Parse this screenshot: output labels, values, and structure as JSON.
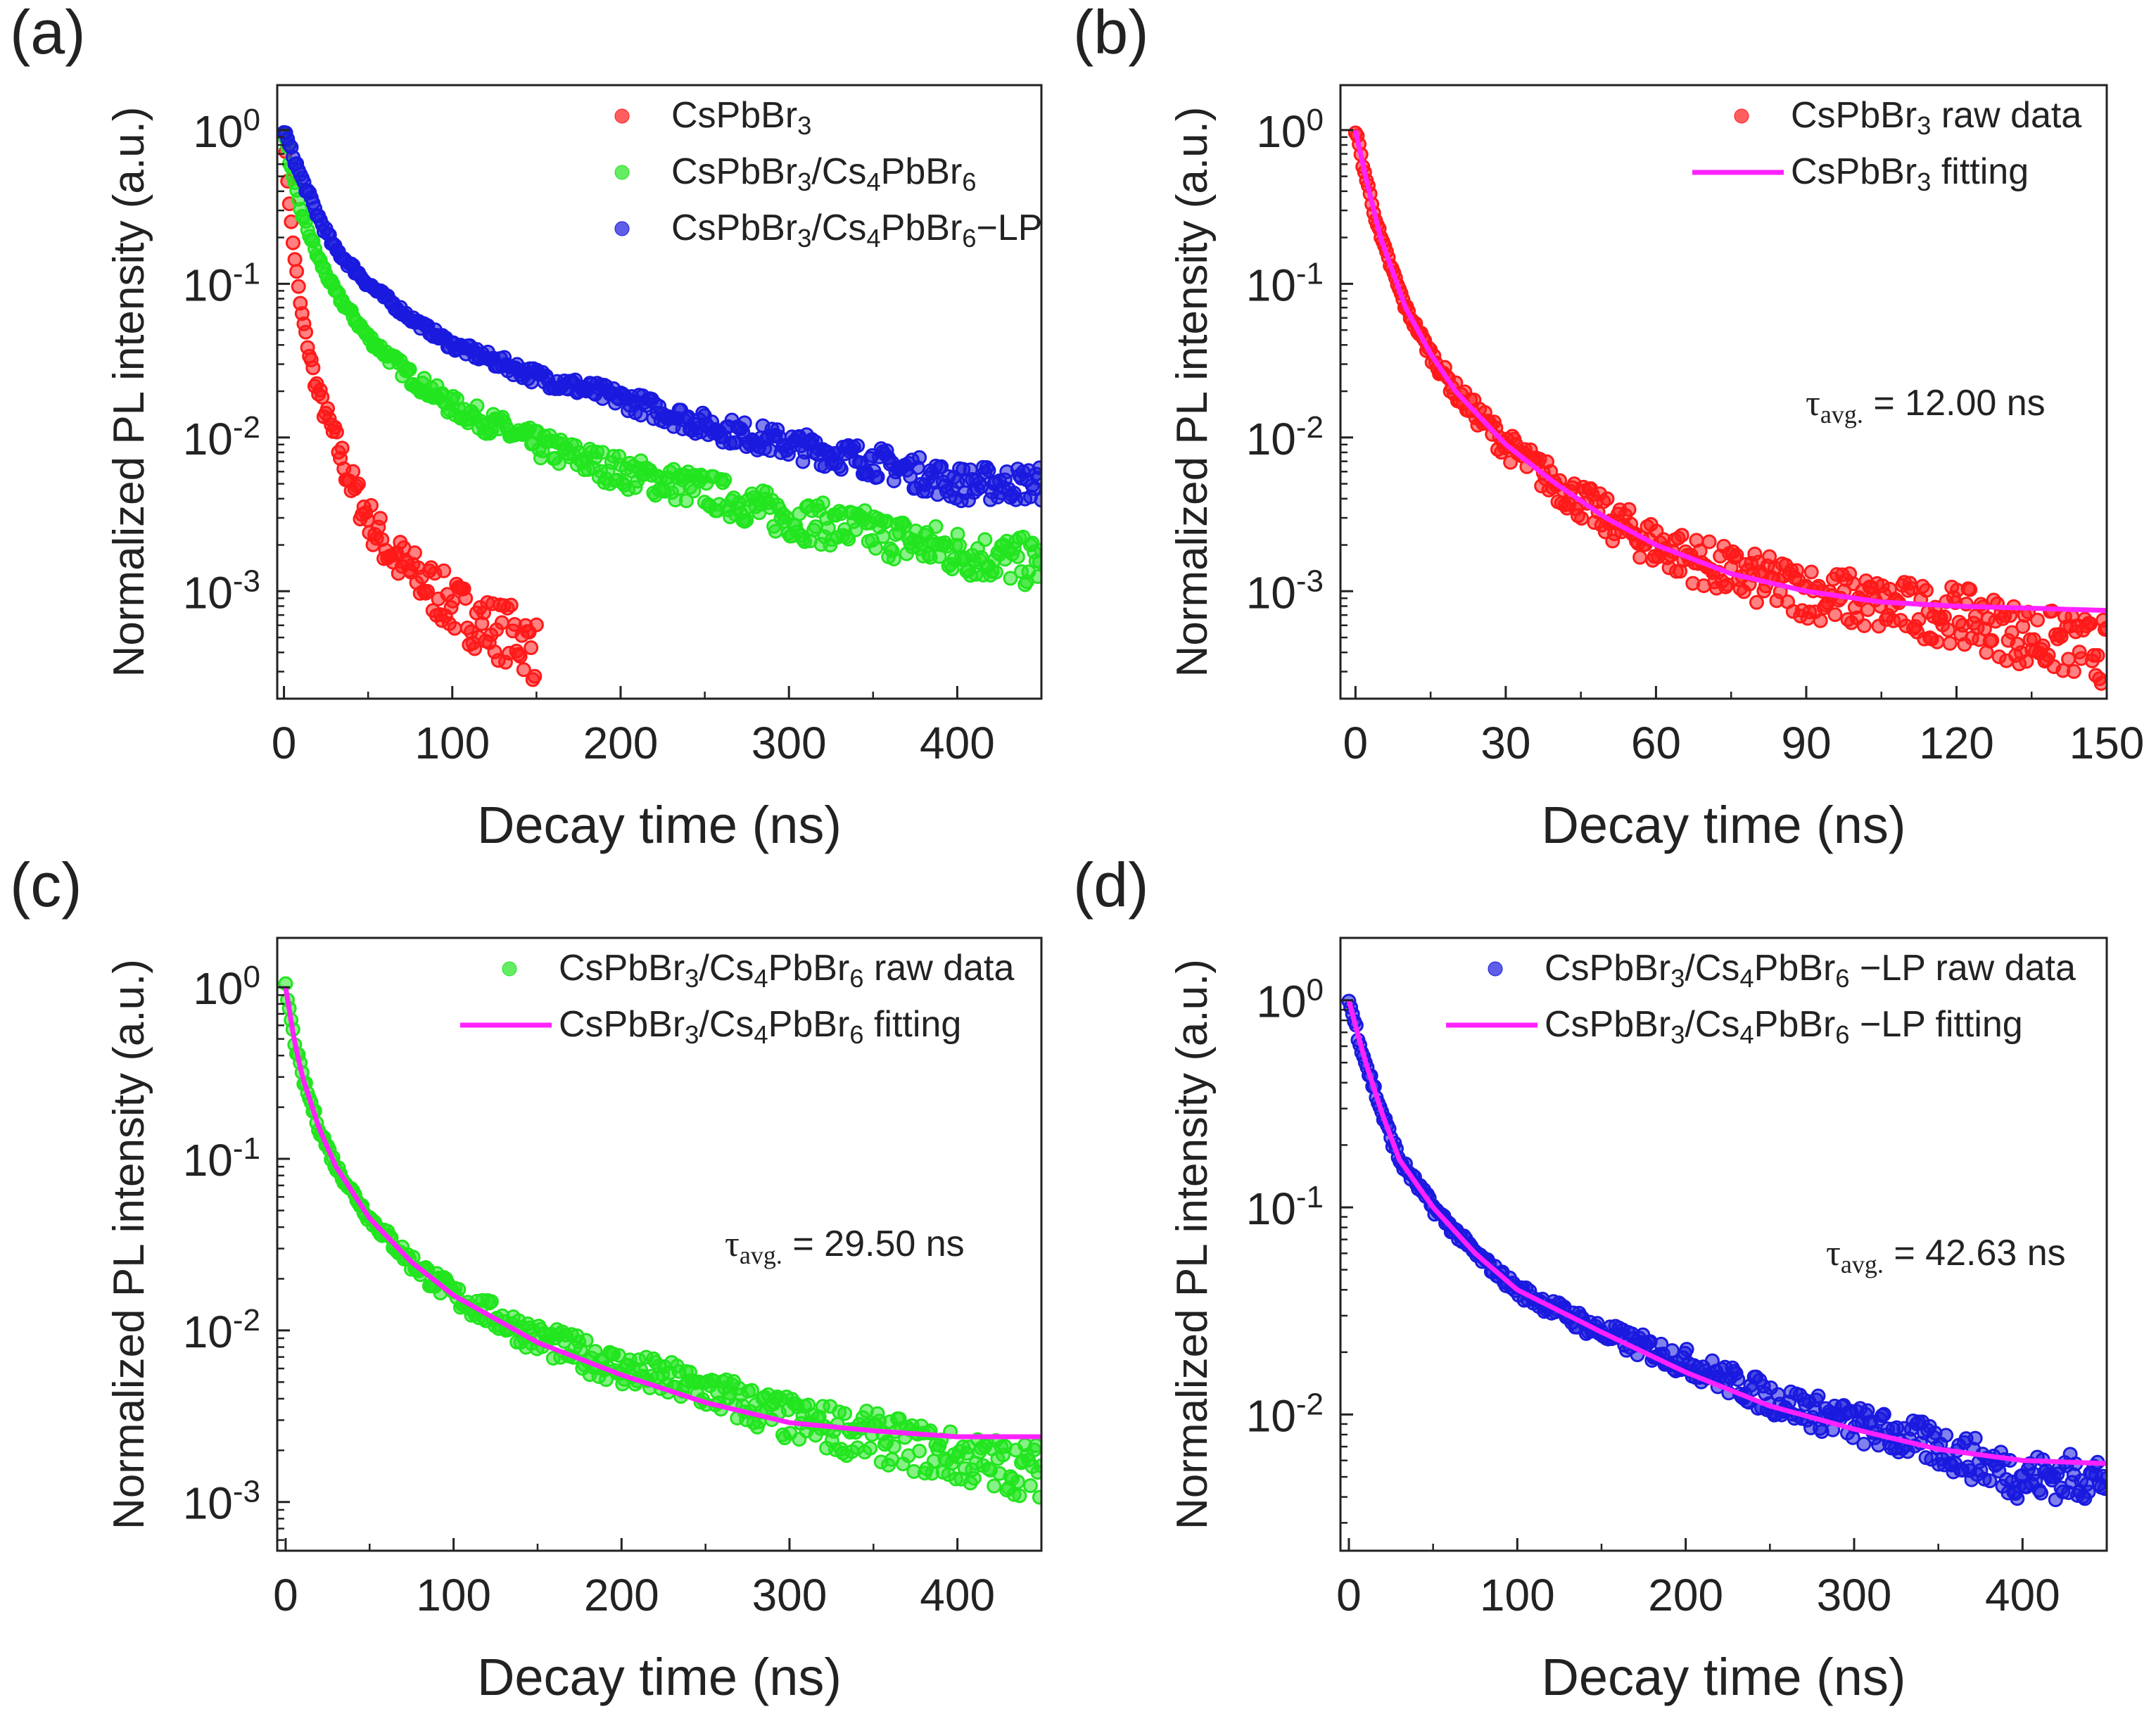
{
  "chart_data": [
    {
      "panel_label": "(a)",
      "type": "scatter",
      "xlabel": "Decay time (ns)",
      "ylabel": "Normalized PL intensity (a.u.)",
      "yscale": "log",
      "xlim": [
        -4,
        450
      ],
      "ylim": [
        0.0002,
        1.96
      ],
      "xticks": [
        0,
        100,
        200,
        300,
        400
      ],
      "xminor": 50,
      "yticks": [
        1,
        0.1,
        0.01,
        0.001
      ],
      "ytick_labels": [
        [
          "10",
          "0"
        ],
        [
          "10",
          "-1"
        ],
        [
          "10",
          "-2"
        ],
        [
          "10",
          "-3"
        ]
      ],
      "legend_position": "top-right",
      "series": [
        {
          "name": "CsPbBr3",
          "kind": "points",
          "color": "#ff1a1a",
          "x": [
            0,
            2,
            5,
            10,
            15,
            20,
            30,
            40,
            50,
            60,
            70,
            80,
            90,
            100,
            120,
            140,
            150
          ],
          "y": [
            1,
            0.5,
            0.2,
            0.07,
            0.035,
            0.02,
            0.01,
            0.005,
            0.003,
            0.002,
            0.0015,
            0.0012,
            0.001,
            0.0008,
            0.0006,
            0.0005,
            0.0004
          ]
        },
        {
          "name": "CsPbBr3/Cs4PbBr6",
          "kind": "points",
          "color": "#22e51f",
          "x": [
            0,
            5,
            10,
            20,
            30,
            50,
            75,
            100,
            150,
            200,
            250,
            300,
            350,
            400,
            450
          ],
          "y": [
            1,
            0.5,
            0.3,
            0.15,
            0.09,
            0.045,
            0.025,
            0.016,
            0.009,
            0.006,
            0.0045,
            0.003,
            0.0024,
            0.0018,
            0.0015
          ]
        },
        {
          "name": "CsPbBr3/Cs4PbBr6-LP",
          "kind": "points",
          "color": "#1a1adf",
          "x": [
            0,
            5,
            10,
            20,
            30,
            50,
            75,
            100,
            150,
            200,
            250,
            300,
            350,
            400,
            450
          ],
          "y": [
            1,
            0.7,
            0.5,
            0.28,
            0.17,
            0.1,
            0.06,
            0.04,
            0.025,
            0.018,
            0.012,
            0.009,
            0.007,
            0.005,
            0.005
          ]
        }
      ]
    },
    {
      "panel_label": "(b)",
      "type": "scatter",
      "xlabel": "Decay time (ns)",
      "ylabel": "Normalized PL intensity (a.u.)",
      "yscale": "log",
      "xlim": [
        -3,
        150
      ],
      "ylim": [
        0.0002,
        1.96
      ],
      "xticks": [
        0,
        30,
        60,
        90,
        120,
        150
      ],
      "xminor": 15,
      "yticks": [
        1,
        0.1,
        0.01,
        0.001
      ],
      "ytick_labels": [
        [
          "10",
          "0"
        ],
        [
          "10",
          "-1"
        ],
        [
          "10",
          "-2"
        ],
        [
          "10",
          "-3"
        ]
      ],
      "legend_position": "top-right",
      "annotation": {
        "symbol": "τ",
        "sub": "avg.",
        "text": "= 12.00 ns"
      },
      "series": [
        {
          "name": "CsPbBr3 raw data",
          "kind": "points",
          "color": "#ff1a1a",
          "x": [
            0,
            2,
            5,
            10,
            15,
            20,
            30,
            40,
            50,
            60,
            75,
            90,
            105,
            120,
            135,
            150
          ],
          "y": [
            1,
            0.5,
            0.2,
            0.07,
            0.035,
            0.02,
            0.009,
            0.005,
            0.003,
            0.002,
            0.0013,
            0.001,
            0.0008,
            0.0007,
            0.0005,
            0.0004
          ]
        },
        {
          "name": "CsPbBr3 fitting",
          "kind": "line",
          "color": "#ff22ff",
          "x": [
            0,
            2,
            5,
            10,
            15,
            20,
            30,
            40,
            50,
            60,
            75,
            90,
            105,
            120,
            150
          ],
          "y": [
            1,
            0.5,
            0.2,
            0.07,
            0.035,
            0.02,
            0.009,
            0.005,
            0.003,
            0.002,
            0.0013,
            0.001,
            0.00085,
            0.0008,
            0.00075
          ]
        }
      ]
    },
    {
      "panel_label": "(c)",
      "type": "scatter",
      "xlabel": "Decay time (ns)",
      "ylabel": "Normalized PL intensity (a.u.)",
      "yscale": "log",
      "xlim": [
        -5,
        450
      ],
      "ylim": [
        0.00052,
        1.94
      ],
      "xticks": [
        0,
        100,
        200,
        300,
        400
      ],
      "xminor": 50,
      "yticks": [
        1,
        0.1,
        0.01,
        0.001
      ],
      "ytick_labels": [
        [
          "10",
          "0"
        ],
        [
          "10",
          "-1"
        ],
        [
          "10",
          "-2"
        ],
        [
          "10",
          "-3"
        ]
      ],
      "legend_position": "top-right",
      "annotation": {
        "symbol": "τ",
        "sub": "avg.",
        "text": "= 29.50 ns"
      },
      "series": [
        {
          "name": "CsPbBr3/Cs4PbBr6 raw data",
          "kind": "points",
          "color": "#22e51f",
          "x": [
            0,
            5,
            10,
            20,
            30,
            50,
            75,
            100,
            150,
            200,
            250,
            300,
            350,
            400,
            450
          ],
          "y": [
            1,
            0.5,
            0.3,
            0.15,
            0.09,
            0.045,
            0.025,
            0.016,
            0.009,
            0.006,
            0.0045,
            0.003,
            0.0024,
            0.0018,
            0.0015
          ]
        },
        {
          "name": "CsPbBr3/Cs4PbBr6 fitting",
          "kind": "line",
          "color": "#ff22ff",
          "x": [
            0,
            5,
            10,
            20,
            30,
            50,
            75,
            100,
            150,
            200,
            250,
            300,
            350,
            400,
            450
          ],
          "y": [
            1,
            0.5,
            0.3,
            0.15,
            0.09,
            0.045,
            0.025,
            0.016,
            0.0085,
            0.0055,
            0.0038,
            0.0029,
            0.0026,
            0.0024,
            0.0024
          ]
        }
      ]
    },
    {
      "panel_label": "(d)",
      "type": "scatter",
      "xlabel": "Decay time (ns)",
      "ylabel": "Normalized PL intensity (a.u.)",
      "yscale": "log",
      "xlim": [
        -5,
        450
      ],
      "ylim": [
        0.0022,
        2.0
      ],
      "xticks": [
        0,
        100,
        200,
        300,
        400
      ],
      "xminor": 50,
      "yticks": [
        1,
        0.1,
        0.01
      ],
      "ytick_labels": [
        [
          "10",
          "0"
        ],
        [
          "10",
          "-1"
        ],
        [
          "10",
          "-2"
        ]
      ],
      "legend_position": "top-right",
      "annotation": {
        "symbol": "τ",
        "sub": "avg.",
        "text": "= 42.63 ns"
      },
      "series": [
        {
          "name": "CsPbBr3/Cs4PbBr6 -LP raw data",
          "kind": "points",
          "color": "#1a1adf",
          "x": [
            0,
            5,
            10,
            20,
            30,
            50,
            75,
            100,
            150,
            200,
            250,
            300,
            350,
            400,
            450
          ],
          "y": [
            1,
            0.7,
            0.5,
            0.28,
            0.17,
            0.1,
            0.06,
            0.04,
            0.025,
            0.018,
            0.012,
            0.009,
            0.007,
            0.005,
            0.005
          ]
        },
        {
          "name": "CsPbBr3/Cs4PbBr6 -LP fitting",
          "kind": "line",
          "color": "#ff22ff",
          "x": [
            0,
            5,
            10,
            20,
            30,
            50,
            75,
            100,
            150,
            200,
            250,
            300,
            350,
            400,
            450
          ],
          "y": [
            1,
            0.7,
            0.5,
            0.28,
            0.17,
            0.1,
            0.06,
            0.04,
            0.025,
            0.016,
            0.011,
            0.0085,
            0.0068,
            0.006,
            0.0058
          ]
        }
      ]
    }
  ]
}
